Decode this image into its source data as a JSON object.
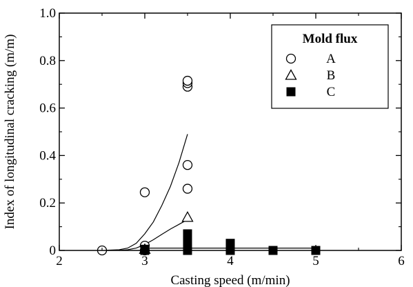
{
  "chart_data": {
    "type": "scatter",
    "title": "",
    "xlabel": "Casting speed  (m/min)",
    "ylabel": "Index of longitudinal cracking  (m/m)",
    "xlim": [
      2,
      6
    ],
    "ylim": [
      0,
      1.0
    ],
    "x_ticks": [
      2,
      3,
      4,
      5,
      6
    ],
    "x_tick_labels": [
      "2",
      "3",
      "4",
      "5",
      "6"
    ],
    "y_ticks": [
      0,
      0.2,
      0.4,
      0.6,
      0.8,
      1.0
    ],
    "y_tick_labels": [
      "0",
      "0.2",
      "0.4",
      "0.6",
      "0.8",
      "1.0"
    ],
    "grid": false,
    "legend": {
      "title": "Mold flux",
      "placement": "top-right"
    },
    "series": [
      {
        "name": "A",
        "marker": "open-circle",
        "points": [
          {
            "x": 2.5,
            "y": 0.0
          },
          {
            "x": 3.0,
            "y": 0.0
          },
          {
            "x": 3.0,
            "y": 0.02
          },
          {
            "x": 3.0,
            "y": 0.245
          },
          {
            "x": 3.5,
            "y": 0.26
          },
          {
            "x": 3.5,
            "y": 0.36
          },
          {
            "x": 3.5,
            "y": 0.69
          },
          {
            "x": 3.5,
            "y": 0.705
          },
          {
            "x": 3.5,
            "y": 0.715
          }
        ]
      },
      {
        "name": "B",
        "marker": "open-triangle",
        "points": [
          {
            "x": 3.0,
            "y": 0.005
          },
          {
            "x": 3.5,
            "y": 0.14
          }
        ]
      },
      {
        "name": "C",
        "marker": "filled-square",
        "points": [
          {
            "x": 3.0,
            "y": 0.0
          },
          {
            "x": 3.0,
            "y": 0.005
          },
          {
            "x": 3.5,
            "y": 0.0
          },
          {
            "x": 3.5,
            "y": 0.01
          },
          {
            "x": 3.5,
            "y": 0.025
          },
          {
            "x": 3.5,
            "y": 0.045
          },
          {
            "x": 3.5,
            "y": 0.07
          },
          {
            "x": 4.0,
            "y": 0.0
          },
          {
            "x": 4.0,
            "y": 0.015
          },
          {
            "x": 4.0,
            "y": 0.03
          },
          {
            "x": 4.5,
            "y": 0.0
          },
          {
            "x": 5.0,
            "y": 0.0
          }
        ]
      }
    ],
    "fit_curves": [
      {
        "series": "A",
        "points": [
          [
            2.5,
            0.0
          ],
          [
            2.7,
            0.003
          ],
          [
            2.8,
            0.01
          ],
          [
            2.9,
            0.03
          ],
          [
            3.0,
            0.07
          ],
          [
            3.1,
            0.12
          ],
          [
            3.2,
            0.19
          ],
          [
            3.3,
            0.27
          ],
          [
            3.4,
            0.37
          ],
          [
            3.5,
            0.49
          ]
        ]
      },
      {
        "series": "B",
        "points": [
          [
            2.7,
            0.0
          ],
          [
            2.8,
            0.003
          ],
          [
            2.9,
            0.01
          ],
          [
            3.0,
            0.025
          ],
          [
            3.1,
            0.045
          ],
          [
            3.2,
            0.068
          ],
          [
            3.3,
            0.09
          ],
          [
            3.4,
            0.11
          ],
          [
            3.5,
            0.13
          ]
        ]
      },
      {
        "series": "C",
        "points": [
          [
            3.0,
            0.01
          ],
          [
            5.0,
            0.01
          ]
        ]
      }
    ]
  }
}
